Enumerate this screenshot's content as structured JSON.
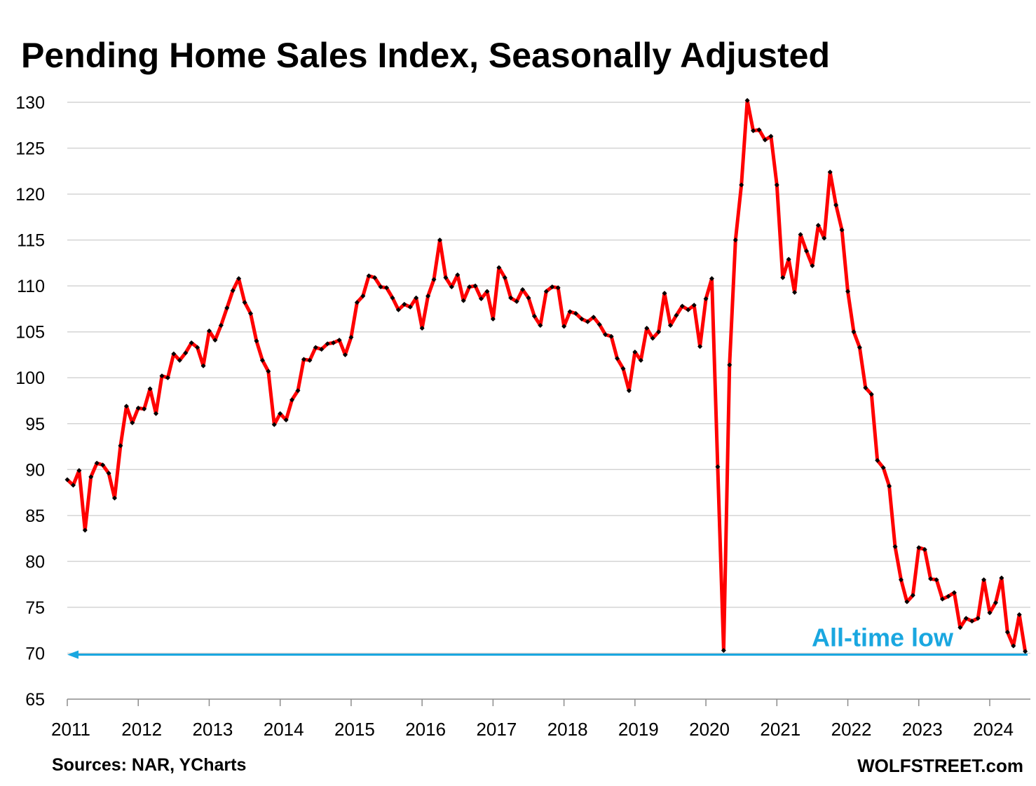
{
  "chart_data": {
    "type": "line",
    "title": "Pending Home Sales Index, Seasonally Adjusted",
    "xlabel": "",
    "ylabel": "",
    "ylim": [
      65,
      130
    ],
    "yticks": [
      65,
      70,
      75,
      80,
      85,
      90,
      95,
      100,
      105,
      110,
      115,
      120,
      125,
      130
    ],
    "xlim": [
      2011,
      2024.6
    ],
    "xticks": [
      "2011",
      "2012",
      "2013",
      "2014",
      "2015",
      "2016",
      "2017",
      "2018",
      "2019",
      "2020",
      "2021",
      "2022",
      "2023",
      "2024"
    ],
    "grid": true,
    "series_color": "#ff0000",
    "marker_color": "#000000",
    "start": "2011-01",
    "frequency": "monthly",
    "values": [
      88.9,
      88.3,
      89.9,
      83.4,
      89.2,
      90.7,
      90.5,
      89.6,
      86.9,
      92.6,
      96.9,
      95.1,
      96.7,
      96.6,
      98.8,
      96.1,
      100.2,
      100.0,
      102.6,
      101.9,
      102.7,
      103.8,
      103.3,
      101.3,
      105.1,
      104.1,
      105.7,
      107.6,
      109.5,
      110.8,
      108.2,
      107.0,
      104.0,
      101.9,
      100.7,
      94.9,
      96.1,
      95.4,
      97.6,
      98.6,
      102.0,
      101.9,
      103.3,
      103.1,
      103.7,
      103.8,
      104.1,
      102.5,
      104.4,
      108.2,
      108.9,
      111.1,
      110.9,
      109.9,
      109.8,
      108.7,
      107.4,
      108.0,
      107.7,
      108.7,
      105.4,
      108.9,
      110.7,
      115.0,
      110.9,
      109.9,
      111.2,
      108.4,
      109.9,
      110.0,
      108.6,
      109.4,
      106.4,
      112.0,
      110.9,
      108.7,
      108.3,
      109.6,
      108.7,
      106.7,
      105.7,
      109.4,
      109.9,
      109.8,
      105.6,
      107.2,
      107.0,
      106.4,
      106.1,
      106.6,
      105.8,
      104.7,
      104.5,
      102.1,
      101.0,
      98.6,
      102.8,
      101.9,
      105.4,
      104.3,
      105.0,
      109.2,
      105.7,
      106.8,
      107.8,
      107.4,
      107.9,
      103.4,
      108.6,
      110.8,
      90.3,
      70.3,
      101.4,
      115.0,
      121.0,
      130.2,
      126.9,
      127.0,
      125.9,
      126.3,
      121.0,
      110.9,
      112.9,
      109.3,
      115.6,
      113.8,
      112.2,
      116.6,
      115.2,
      122.4,
      118.8,
      116.1,
      109.4,
      105.0,
      103.3,
      98.9,
      98.2,
      91.0,
      90.2,
      88.2,
      81.6,
      78.0,
      75.6,
      76.3,
      81.5,
      81.3,
      78.1,
      78.0,
      75.9,
      76.2,
      76.6,
      72.8,
      73.8,
      73.5,
      73.8,
      78.0,
      74.4,
      75.5,
      78.2,
      72.3,
      70.8,
      74.2,
      70.2
    ],
    "annotations": [
      {
        "text": "All-time low",
        "type": "horizontal-arrow",
        "y": 70,
        "color": "#1aa7e0",
        "arrow": "left"
      }
    ]
  },
  "footer": {
    "source": "Sources: NAR, YCharts",
    "brand": "WOLFSTREET.com"
  }
}
